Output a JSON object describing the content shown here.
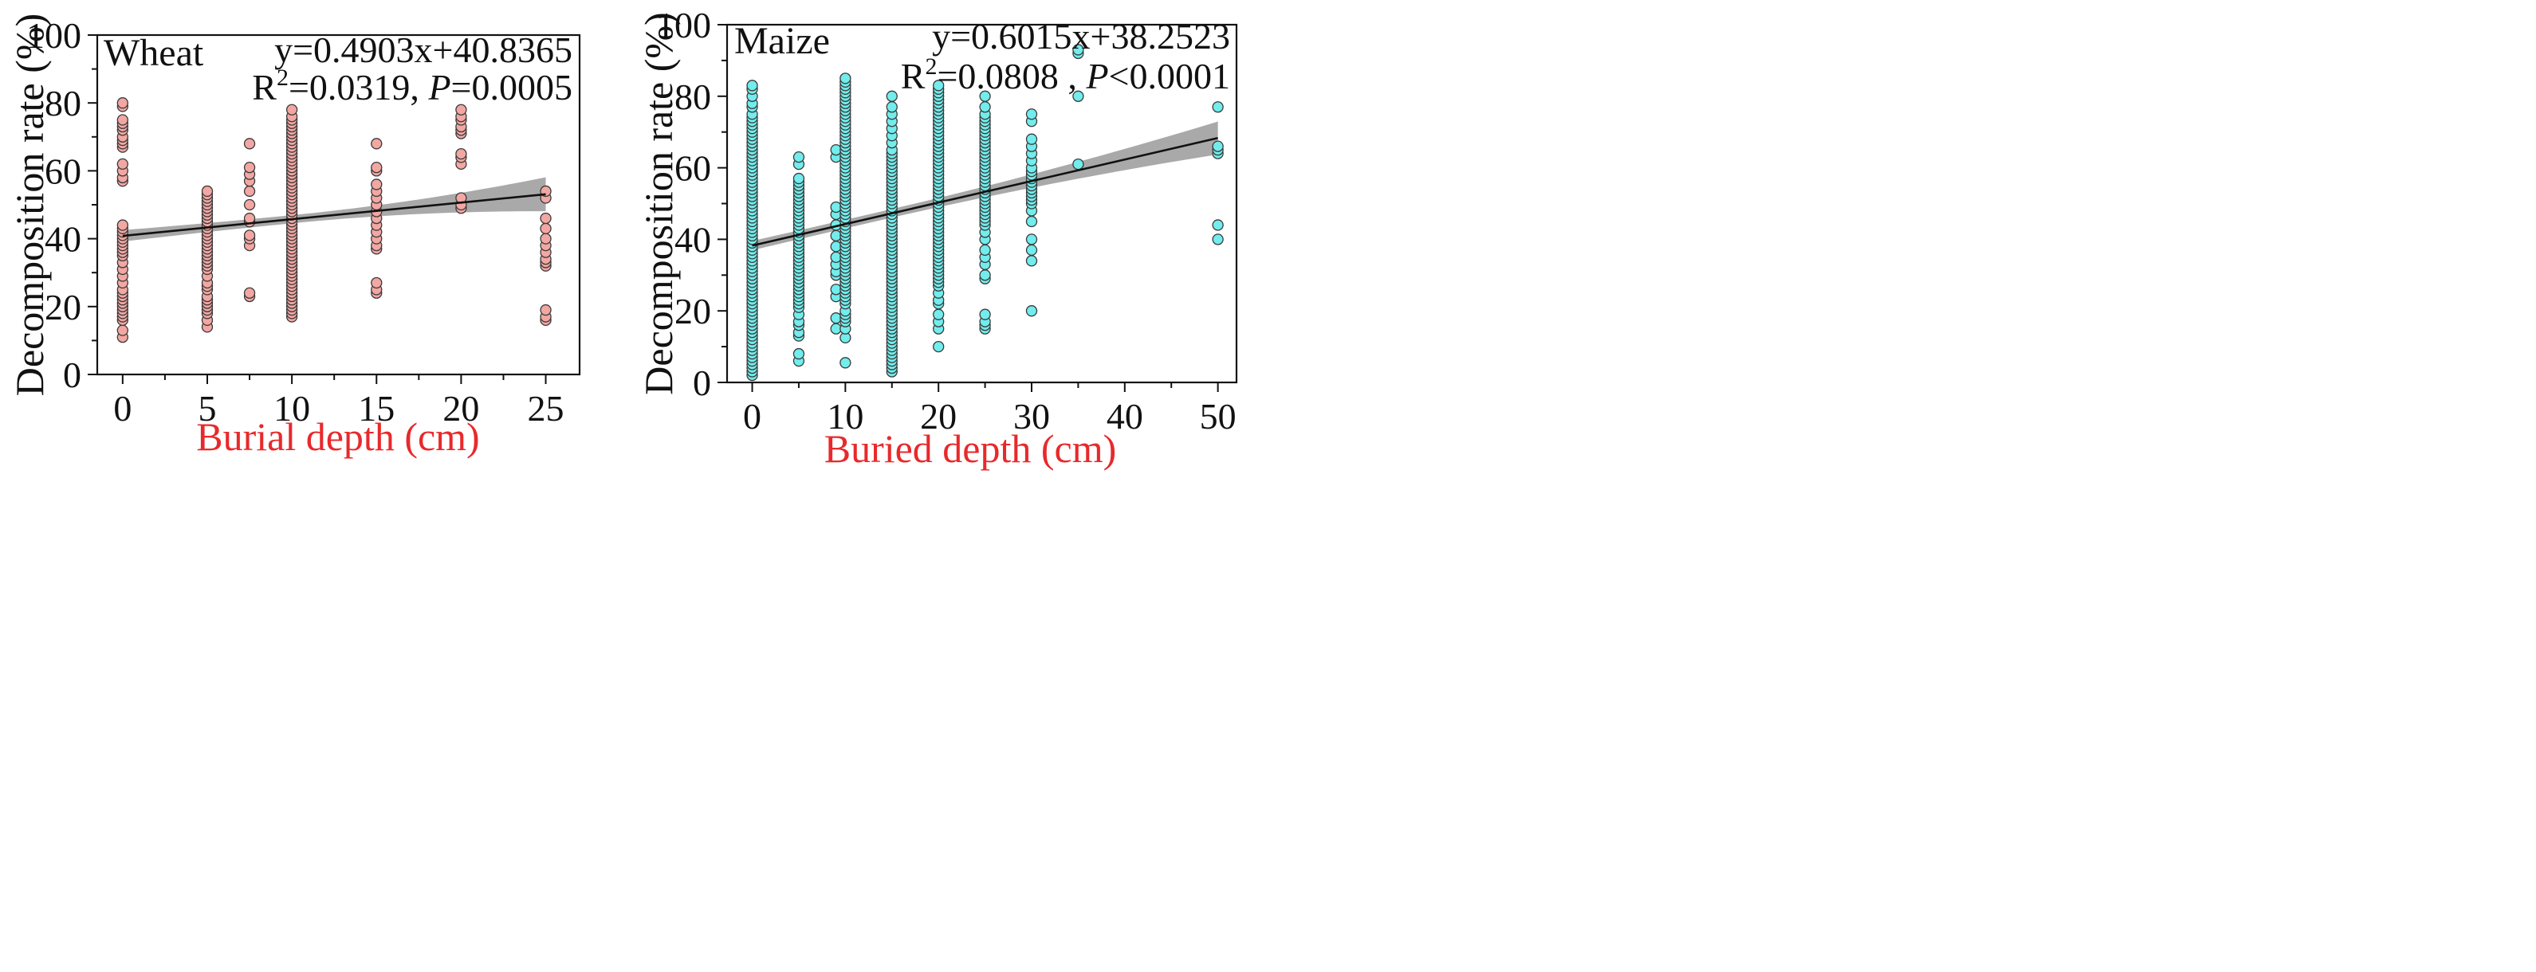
{
  "colors": {
    "wheat_point": "#f2a7a3",
    "maize_point": "#72ecec",
    "point_edge": "#3a3a3a",
    "fit_line": "#111111",
    "ci_band": "#a9a9a9",
    "xlabel": "#e8292b",
    "axis": "#111111"
  },
  "chart_data": [
    {
      "type": "scatter",
      "title": "Wheat",
      "xlabel": "Burial depth (cm)",
      "ylabel": "Decomposition rate (%)",
      "xlim": [
        -1.5,
        27
      ],
      "ylim": [
        0,
        100
      ],
      "xticks": [
        0,
        5,
        10,
        15,
        20,
        25
      ],
      "yticks": [
        0,
        20,
        40,
        60,
        80,
        100
      ],
      "x_minor_step": 2.5,
      "fit": {
        "slope": 0.4903,
        "intercept": 40.8365,
        "x_range": [
          0,
          25
        ],
        "ci_half_width_ends": [
          2.3,
          5.0
        ],
        "ci_center_x": 10
      },
      "equation": {
        "line1": "y=0.4903x+40.8365",
        "r2_prefix": "R",
        "r2_sup": "2",
        "r2_value": "=0.0319, ",
        "p_label": "P",
        "p_value": "=0.0005"
      },
      "series": [
        {
          "x": 0,
          "y": [
            11,
            13,
            16,
            17,
            18,
            19,
            20,
            21,
            22,
            23,
            24,
            25,
            27,
            29,
            31,
            33,
            35,
            36,
            37,
            38,
            39,
            40,
            41,
            42,
            43,
            44,
            57,
            58,
            60,
            62,
            67,
            68,
            69,
            70,
            72,
            73,
            74,
            75,
            79,
            80
          ]
        },
        {
          "x": 5,
          "y": [
            14,
            16,
            18,
            19,
            20,
            21,
            22,
            23,
            25,
            26,
            27,
            29,
            31,
            32,
            33,
            34,
            35,
            36,
            37,
            38,
            39,
            40,
            41,
            42,
            43,
            44,
            45,
            46,
            47,
            48,
            49,
            50,
            51,
            52,
            53,
            54
          ]
        },
        {
          "x": 7.5,
          "y": [
            23,
            24,
            38,
            40,
            41,
            45,
            46,
            50,
            54,
            57,
            59,
            61,
            68
          ]
        },
        {
          "x": 10,
          "y": [
            17,
            18,
            19,
            20,
            21,
            22,
            23,
            24,
            25,
            26,
            27,
            28,
            29,
            30,
            31,
            32,
            33,
            34,
            35,
            36,
            37,
            38,
            39,
            40,
            41,
            42,
            43,
            44,
            45,
            46,
            47,
            48,
            49,
            50,
            51,
            52,
            53,
            54,
            55,
            56,
            57,
            58,
            59,
            60,
            61,
            62,
            63,
            64,
            65,
            66,
            67,
            68,
            69,
            70,
            71,
            72,
            73,
            74,
            75,
            76,
            78
          ]
        },
        {
          "x": 15,
          "y": [
            24,
            25,
            27,
            37,
            38,
            40,
            42,
            44,
            46,
            48,
            50,
            52,
            54,
            56,
            60,
            61,
            68
          ]
        },
        {
          "x": 20,
          "y": [
            49,
            50,
            52,
            62,
            64,
            65,
            71,
            72,
            73,
            75,
            76,
            78
          ]
        },
        {
          "x": 25,
          "y": [
            16,
            17,
            19,
            32,
            33,
            34,
            36,
            38,
            40,
            43,
            46,
            52,
            54
          ]
        }
      ]
    },
    {
      "type": "scatter",
      "title": "Maize",
      "xlabel": "Buried depth (cm)",
      "ylabel": "Decomposition rate (%)",
      "xlim": [
        -2.7,
        52
      ],
      "ylim": [
        0,
        100
      ],
      "xticks": [
        0,
        10,
        20,
        30,
        40,
        50
      ],
      "yticks": [
        0,
        20,
        40,
        60,
        80,
        100
      ],
      "x_minor_step": 5,
      "fit": {
        "slope": 0.6015,
        "intercept": 38.2523,
        "x_range": [
          0,
          50
        ],
        "ci_half_width_ends": [
          1.9,
          4.6
        ],
        "ci_center_x": 14
      },
      "equation": {
        "line1": "y=0.6015x+38.2523",
        "r2_prefix": "R",
        "r2_sup": "2",
        "r2_value": "=0.0808 , ",
        "p_label": "P",
        "p_value": "<0.0001"
      },
      "series": [
        {
          "x": 0,
          "y": [
            2,
            3,
            4,
            5,
            6,
            7,
            8,
            9,
            10,
            11,
            12,
            13,
            14,
            15,
            16,
            17,
            18,
            19,
            20,
            21,
            22,
            23,
            24,
            25,
            26,
            27,
            28,
            29,
            30,
            31,
            32,
            33,
            34,
            35,
            36,
            37,
            38,
            39,
            40,
            41,
            42,
            43,
            44,
            45,
            46,
            47,
            48,
            49,
            50,
            51,
            52,
            53,
            54,
            55,
            56,
            57,
            58,
            59,
            60,
            61,
            62,
            63,
            64,
            65,
            66,
            67,
            68,
            69,
            70,
            71,
            72,
            73,
            74,
            75,
            77,
            78,
            80,
            82,
            83
          ]
        },
        {
          "x": 5,
          "y": [
            6,
            8,
            13,
            14,
            16,
            17,
            19,
            21,
            22,
            23,
            24,
            25,
            26,
            27,
            28,
            29,
            30,
            31,
            32,
            33,
            34,
            35,
            36,
            37,
            38,
            39,
            40,
            41,
            42,
            43,
            44,
            45,
            46,
            47,
            48,
            49,
            50,
            51,
            52,
            53,
            54,
            55,
            56,
            57,
            61,
            63
          ]
        },
        {
          "x": 9,
          "y": [
            15,
            18,
            24,
            26,
            30,
            31,
            33,
            35,
            38,
            41,
            44,
            47,
            49,
            63,
            65
          ]
        },
        {
          "x": 10,
          "y": [
            5.5,
            12.5,
            15,
            17,
            18,
            19,
            20,
            22,
            23,
            24,
            25,
            26,
            27,
            28,
            29,
            30,
            31,
            32,
            33,
            34,
            35,
            36,
            37,
            38,
            39,
            40,
            41,
            42,
            43,
            44,
            45,
            46,
            47,
            48,
            49,
            50,
            51,
            52,
            53,
            54,
            55,
            56,
            57,
            58,
            59,
            60,
            61,
            62,
            63,
            64,
            65,
            66,
            67,
            68,
            69,
            70,
            71,
            72,
            73,
            74,
            75,
            76,
            77,
            78,
            79,
            80,
            81,
            82,
            83,
            84,
            85
          ]
        },
        {
          "x": 15,
          "y": [
            3,
            4,
            5,
            6,
            7,
            8,
            9,
            10,
            11,
            12,
            13,
            14,
            15,
            16,
            17,
            18,
            19,
            20,
            21,
            22,
            23,
            24,
            25,
            26,
            27,
            28,
            29,
            30,
            31,
            32,
            33,
            34,
            35,
            36,
            37,
            38,
            39,
            40,
            41,
            42,
            43,
            44,
            45,
            46,
            47,
            48,
            49,
            50,
            51,
            52,
            53,
            54,
            55,
            56,
            57,
            58,
            59,
            60,
            61,
            62,
            63,
            64,
            65,
            67,
            69,
            71,
            73,
            75,
            77,
            80
          ]
        },
        {
          "x": 20,
          "y": [
            10,
            15,
            17,
            19,
            22,
            23,
            25,
            27,
            28,
            29,
            30,
            31,
            32,
            33,
            34,
            35,
            36,
            37,
            38,
            39,
            40,
            41,
            42,
            43,
            44,
            45,
            46,
            47,
            48,
            49,
            50,
            51,
            52,
            53,
            54,
            55,
            56,
            57,
            58,
            59,
            60,
            61,
            62,
            63,
            64,
            65,
            66,
            67,
            68,
            69,
            70,
            71,
            72,
            73,
            74,
            75,
            76,
            77,
            78,
            79,
            80,
            81,
            82,
            83
          ]
        },
        {
          "x": 25,
          "y": [
            15,
            16,
            17,
            19,
            29,
            30,
            33,
            35,
            37,
            40,
            42,
            44,
            45,
            46,
            47,
            48,
            49,
            50,
            51,
            52,
            53,
            54,
            55,
            56,
            57,
            58,
            59,
            60,
            61,
            62,
            63,
            64,
            65,
            66,
            67,
            68,
            69,
            70,
            71,
            72,
            73,
            74,
            75,
            77,
            80
          ]
        },
        {
          "x": 30,
          "y": [
            20,
            34,
            37,
            40,
            45,
            48,
            50,
            51,
            52,
            53,
            54,
            55,
            56,
            57,
            58,
            59,
            60,
            62,
            64,
            66,
            68,
            73,
            75
          ]
        },
        {
          "x": 35,
          "y": [
            61,
            80,
            92,
            93
          ]
        },
        {
          "x": 50,
          "y": [
            40,
            44,
            64,
            65,
            66,
            77
          ]
        }
      ]
    }
  ]
}
